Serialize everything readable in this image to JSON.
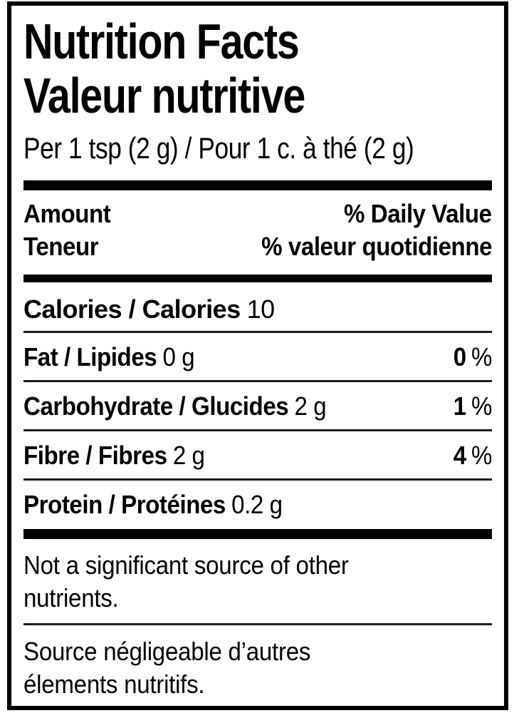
{
  "label": {
    "title_en": "Nutrition Facts",
    "title_fr": "Valeur nutritive",
    "serving": "Per 1 tsp (2 g) / Pour 1 c. à thé (2 g)",
    "header": {
      "amount_en": "Amount",
      "amount_fr": "Teneur",
      "daily_value_en": "% Daily Value",
      "daily_value_fr": "% valeur quotidienne"
    },
    "calories": {
      "name": "Calories / Calories",
      "value": "10"
    },
    "nutrients": [
      {
        "name": "Fat / Lipides",
        "amount": "0 g",
        "dv": "0",
        "dv_unit": "%"
      },
      {
        "name": "Carbohydrate / Glucides",
        "amount": "2 g",
        "dv": "1",
        "dv_unit": "%"
      },
      {
        "name": "Fibre / Fibres",
        "amount": "2 g",
        "dv": "4",
        "dv_unit": "%"
      },
      {
        "name": "Protein / Protéines",
        "amount": "0.2 g",
        "dv": "",
        "dv_unit": ""
      }
    ],
    "footnote_en": {
      "lines": [
        "Not a significant source of other",
        "nutrients."
      ]
    },
    "footnote_fr": {
      "lines": [
        "Source négligeable d’autres",
        "élements nutritifs."
      ]
    },
    "colors": {
      "ink": "#000000",
      "paper": "#ffffff"
    }
  }
}
